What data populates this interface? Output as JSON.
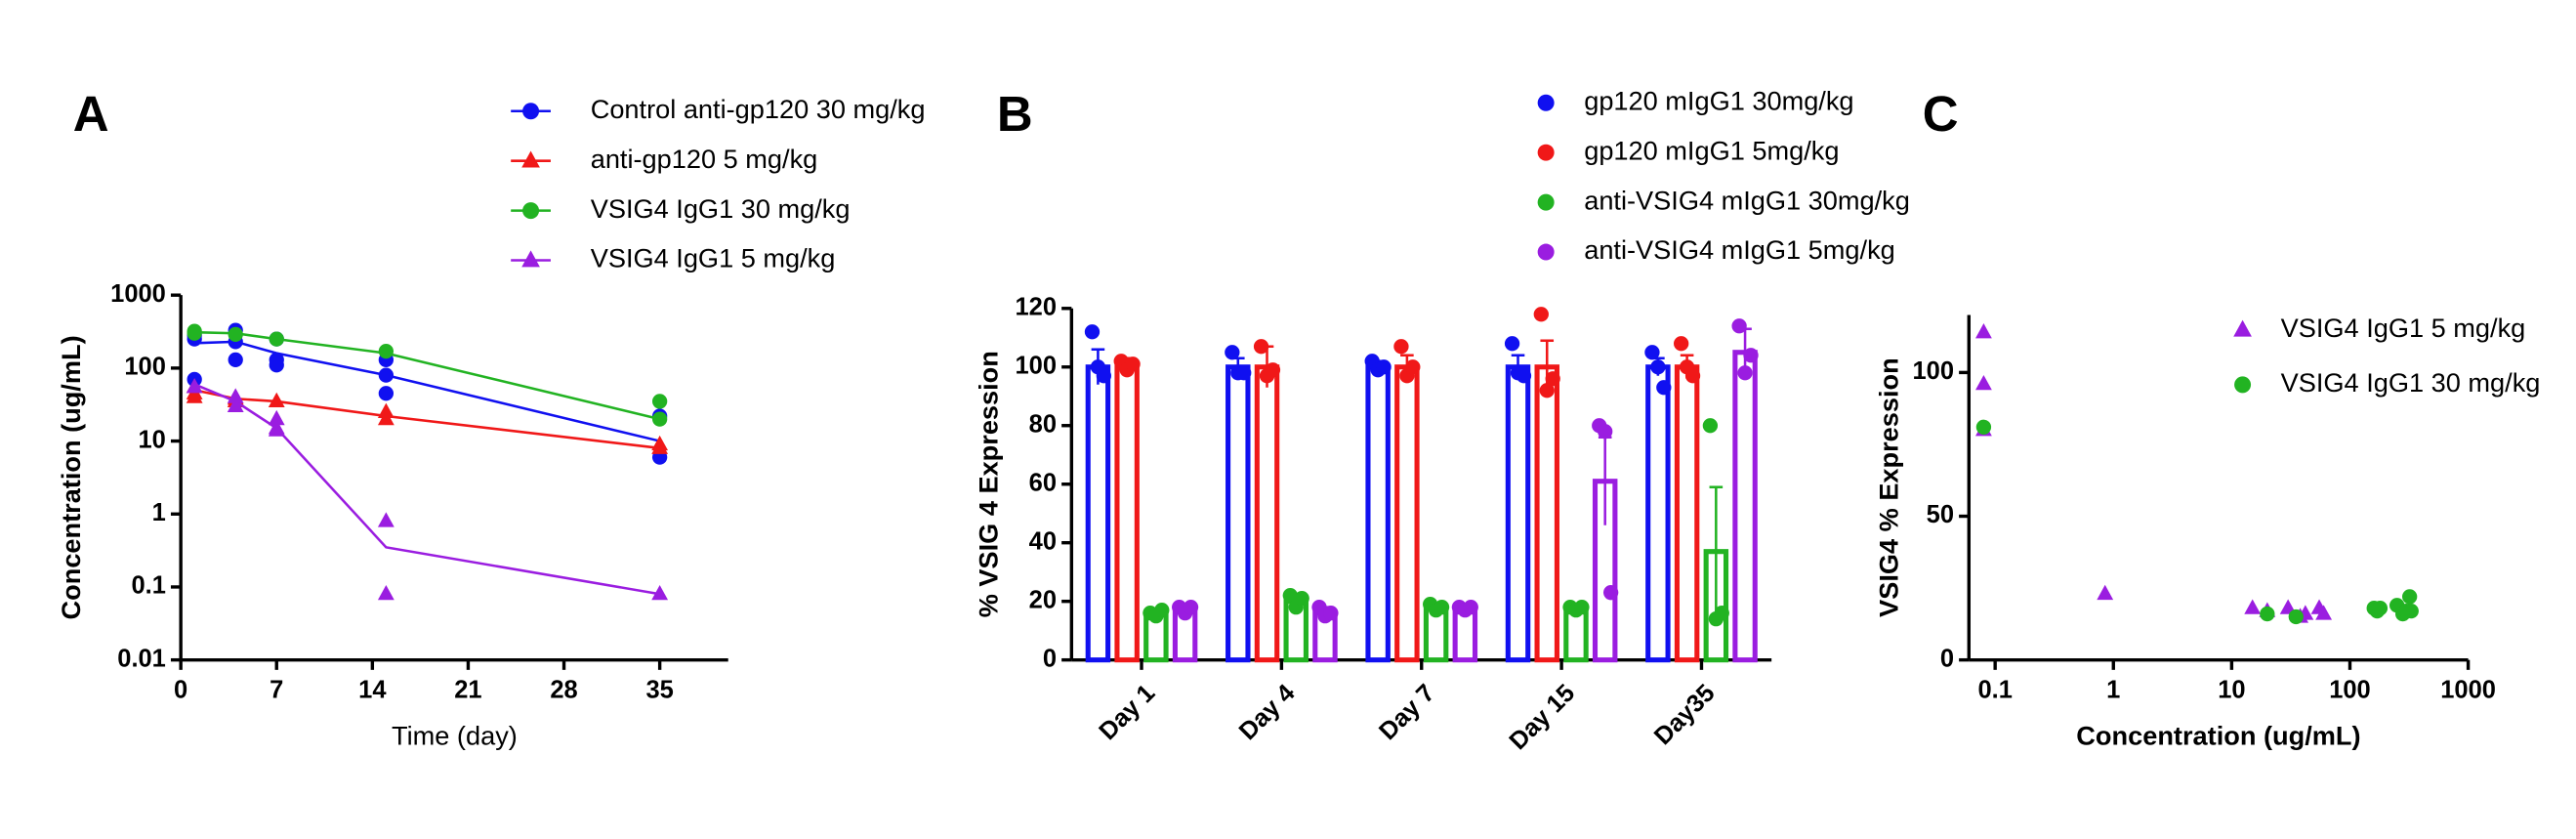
{
  "chart_data": [
    {
      "type": "line",
      "label": "A",
      "xlabel": "Time (day)",
      "ylabel": "Concentration (ug/mL)",
      "xlim": [
        0,
        40
      ],
      "xticks": [
        0,
        7,
        14,
        21,
        28,
        35
      ],
      "ylim": [
        0.01,
        1000
      ],
      "ylog": true,
      "yticks": [
        0.01,
        0.1,
        1,
        10,
        100,
        1000
      ],
      "series": [
        {
          "name": "Control anti-gp120 30 mg/kg",
          "color": "#1010f0",
          "marker": "circle",
          "x": [
            1,
            4,
            7,
            15,
            35
          ],
          "values": [
            220,
            230,
            160,
            80,
            10
          ],
          "points_x": [
            1,
            1,
            1,
            4,
            4,
            4,
            7,
            7,
            7,
            15,
            15,
            15,
            35,
            35
          ],
          "points_y": [
            280,
            70,
            250,
            330,
            130,
            230,
            250,
            130,
            110,
            130,
            80,
            45,
            22,
            6
          ]
        },
        {
          "name": "anti-gp120 5 mg/kg",
          "color": "#f01818",
          "marker": "triangle",
          "x": [
            1,
            4,
            7,
            15,
            35
          ],
          "values": [
            50,
            38,
            35,
            22,
            8
          ],
          "points_x": [
            1,
            1,
            1,
            4,
            4,
            7,
            15,
            15,
            35,
            35
          ],
          "points_y": [
            45,
            55,
            40,
            35,
            38,
            35,
            20,
            25,
            8,
            9
          ]
        },
        {
          "name": "VSIG4 IgG1 30 mg/kg",
          "color": "#22b322",
          "marker": "circle",
          "x": [
            1,
            4,
            7,
            15,
            35
          ],
          "values": [
            310,
            300,
            250,
            160,
            20
          ],
          "points_x": [
            1,
            1,
            4,
            7,
            15,
            35,
            35
          ],
          "points_y": [
            320,
            300,
            290,
            250,
            170,
            35,
            20
          ]
        },
        {
          "name": "VSIG4 IgG1 5 mg/kg",
          "color": "#9a1de0",
          "marker": "triangle",
          "x": [
            1,
            4,
            7,
            15,
            35
          ],
          "values": [
            60,
            35,
            15,
            0.35,
            0.08
          ],
          "points_x": [
            1,
            4,
            4,
            7,
            7,
            7,
            15,
            15,
            35
          ],
          "points_y": [
            55,
            40,
            30,
            20,
            15,
            14,
            0.8,
            0.08,
            0.08
          ]
        }
      ]
    },
    {
      "type": "bar",
      "label": "B",
      "ylabel": "% VSIG 4 Expression",
      "categories": [
        "Day 1",
        "Day 4",
        "Day 7",
        "Day 15",
        "Day35"
      ],
      "ylim": [
        0,
        120
      ],
      "yticks": [
        0,
        20,
        40,
        60,
        80,
        100,
        120
      ],
      "series": [
        {
          "name": "gp120 mIgG1 30mg/kg",
          "color": "#1010f0",
          "values": [
            100,
            100,
            100,
            100,
            100
          ],
          "errors": [
            6,
            3,
            2,
            4,
            3
          ],
          "points": [
            [
              112,
              100,
              97
            ],
            [
              105,
              98,
              98
            ],
            [
              102,
              99,
              100
            ],
            [
              108,
              98,
              97
            ],
            [
              105,
              100,
              93
            ]
          ]
        },
        {
          "name": "gp120 mIgG1 5mg/kg",
          "color": "#f01818",
          "values": [
            100,
            100,
            100,
            100,
            100
          ],
          "errors": [
            3,
            7,
            4,
            9,
            4
          ],
          "points": [
            [
              102,
              99,
              101
            ],
            [
              107,
              97,
              99
            ],
            [
              107,
              97,
              100
            ],
            [
              118,
              92,
              96
            ],
            [
              108,
              100,
              97
            ]
          ]
        },
        {
          "name": "anti-VSIG4 mIgG1 30mg/kg",
          "color": "#22b322",
          "values": [
            16,
            20,
            18,
            18,
            37
          ],
          "errors": [
            1,
            2,
            1,
            1,
            22
          ],
          "points": [
            [
              16,
              15,
              17
            ],
            [
              22,
              18,
              21
            ],
            [
              19,
              17,
              18
            ],
            [
              18,
              17,
              18
            ],
            [
              80,
              14,
              16
            ]
          ]
        },
        {
          "name": "anti-VSIG4 mIgG1 5mg/kg",
          "color": "#9a1de0",
          "values": [
            17,
            16,
            18,
            61,
            105
          ],
          "errors": [
            2,
            2,
            1,
            15,
            8
          ],
          "points": [
            [
              18,
              16,
              18
            ],
            [
              18,
              15,
              16
            ],
            [
              18,
              17,
              18
            ],
            [
              80,
              78,
              23
            ],
            [
              114,
              98,
              104
            ]
          ]
        }
      ]
    },
    {
      "type": "scatter",
      "label": "C",
      "xlabel": "Concentration (ug/mL)",
      "ylabel": "VSIG4 % Expression",
      "xlim": [
        0.06,
        1000
      ],
      "xlog": true,
      "xticks": [
        0.1,
        1,
        10,
        100,
        1000
      ],
      "ylim": [
        0,
        120
      ],
      "yticks": [
        0,
        50,
        100
      ],
      "series": [
        {
          "name": "VSIG4 IgG1 5 mg/kg",
          "color": "#9a1de0",
          "marker": "triangle",
          "x": [
            0.08,
            0.08,
            0.08,
            0.85,
            15,
            20,
            30,
            38,
            42,
            55,
            60
          ],
          "values": [
            114,
            96,
            80,
            23,
            18,
            17,
            18,
            15,
            16,
            18,
            16
          ]
        },
        {
          "name": "VSIG4 IgG1 30 mg/kg",
          "color": "#22b322",
          "marker": "circle",
          "x": [
            0.08,
            20,
            35,
            160,
            170,
            180,
            250,
            280,
            300,
            320,
            330
          ],
          "values": [
            81,
            16,
            15,
            18,
            17,
            18,
            19,
            16,
            17,
            22,
            17
          ]
        }
      ]
    }
  ]
}
